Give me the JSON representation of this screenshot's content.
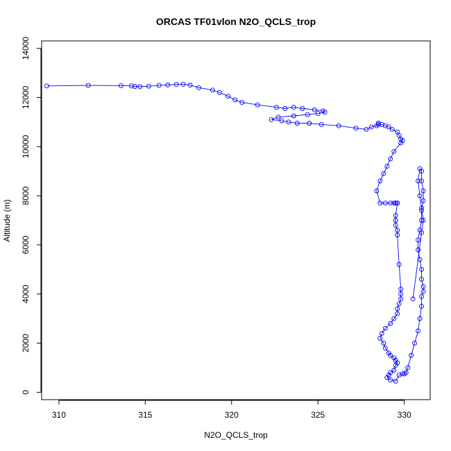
{
  "chart_data": {
    "type": "scatter",
    "title": "ORCAS TF01vlon N2O_QCLS_trop",
    "xlabel": "N2O_QCLS_trop",
    "ylabel": "Altitude (m)",
    "xlim": [
      309,
      331.5
    ],
    "ylim": [
      -300,
      14300
    ],
    "xticks": [
      "310",
      "315",
      "320",
      "325",
      "330"
    ],
    "yticks": [
      "0",
      "2000",
      "4000",
      "6000",
      "8000",
      "10000",
      "12000",
      "14000"
    ],
    "grid": false,
    "legend": "none",
    "marker": "open-circle",
    "connected": true,
    "color": "#0000ff",
    "series": [
      {
        "x": [
          309.3,
          311.7,
          313.6,
          314.2,
          314.4,
          314.7,
          315.2,
          315.8,
          316.3,
          316.8,
          317.2,
          317.6,
          318.1,
          318.9,
          319.3,
          319.8,
          320.2,
          320.6,
          321.5,
          322.6,
          323.1,
          323.6,
          324.1,
          324.8,
          325.3,
          325.4,
          325.0,
          324.4,
          323.6,
          322.7,
          322.3,
          322.9,
          323.3,
          323.8,
          324.5,
          325.2,
          326.2,
          327.2,
          327.8,
          328.1,
          328.4,
          328.5,
          328.5,
          328.7,
          328.9,
          329.1,
          329.3,
          329.6,
          329.7,
          329.8,
          329.9,
          329.8,
          329.4,
          329.2,
          329.0,
          328.8,
          328.6,
          328.4,
          328.6,
          328.9,
          329.2,
          329.4,
          329.5,
          329.5,
          329.6,
          329.6,
          329.5,
          329.5,
          329.5,
          329.6,
          329.6,
          329.7,
          329.8,
          329.8,
          329.8,
          329.7,
          329.6,
          329.6,
          329.4,
          329.2,
          328.9,
          328.7,
          328.6,
          328.8,
          328.9,
          329.1,
          329.2,
          329.4,
          329.5,
          329.6,
          329.5,
          329.4,
          329.2,
          329.1,
          329.0,
          329.2,
          329.5,
          329.7,
          329.9,
          330.0,
          330.1,
          330.2,
          330.4,
          330.6,
          330.8,
          330.9,
          331.0,
          331.0,
          331.1,
          331.1,
          331.0,
          331.0,
          330.9,
          330.8,
          330.8,
          330.9,
          331.0,
          331.0,
          331.1,
          331.1,
          331.0,
          331.0,
          330.9,
          330.8,
          330.9,
          331.0,
          331.1,
          331.0,
          330.5
        ],
        "y": [
          12470,
          12490,
          12480,
          12470,
          12450,
          12440,
          12460,
          12490,
          12510,
          12530,
          12540,
          12500,
          12400,
          12300,
          12200,
          12050,
          11900,
          11800,
          11700,
          11600,
          11550,
          11600,
          11550,
          11500,
          11450,
          11400,
          11350,
          11300,
          11250,
          11200,
          11100,
          11050,
          11000,
          10950,
          10950,
          10900,
          10850,
          10750,
          10700,
          10800,
          10850,
          10900,
          10950,
          10900,
          10850,
          10800,
          10700,
          10600,
          10450,
          10300,
          10250,
          10150,
          9800,
          9500,
          9200,
          8900,
          8600,
          8200,
          7700,
          7700,
          7700,
          7700,
          7700,
          7700,
          7700,
          7700,
          7200,
          7000,
          6800,
          6600,
          6400,
          5200,
          4200,
          4000,
          3800,
          3600,
          3400,
          3200,
          3000,
          2800,
          2600,
          2400,
          2200,
          2000,
          1800,
          1600,
          1500,
          1400,
          1300,
          1200,
          1100,
          900,
          800,
          700,
          600,
          500,
          450,
          700,
          750,
          750,
          800,
          1000,
          1500,
          2000,
          2500,
          3000,
          3500,
          3900,
          4100,
          4300,
          4600,
          5000,
          5400,
          5800,
          6200,
          6600,
          7000,
          7400,
          7800,
          8200,
          8600,
          9000,
          9100,
          8600,
          8000,
          7500,
          7000,
          6500,
          3800
        ]
      }
    ]
  }
}
